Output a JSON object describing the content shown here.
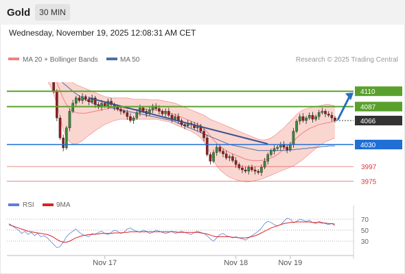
{
  "header": {
    "symbol": "Gold",
    "timeframe": "30 MIN"
  },
  "datetime": "Wednesday, November 19, 2025 12:08:31 AM CET",
  "legend": {
    "ma20_label": "MA 20 + Bollinger Bands",
    "ma50_label": "MA 50",
    "copyright": "Research © 2025 Trading Central",
    "rsi_label": "RSI",
    "rsi_ma_label": "9MA"
  },
  "colors": {
    "ma20": "#f08080",
    "bollinger_fill": "#f8c8c0",
    "ma50": "#4a6fa5",
    "resistance": "#5aa02c",
    "support": "#1f6fd6",
    "lower_levels": "#d93a3a",
    "current_price": "#333333",
    "trendline": "#3a4f8f",
    "rsi": "#5b7fd6",
    "rsi_ma": "#e02020",
    "candle_up": "#3a8a3a",
    "candle_down": "#9a1a1a"
  },
  "chart_data": [
    {
      "type": "candlestick",
      "title": "",
      "x_tick_labels": [
        "Nov 17",
        "Nov 18",
        "Nov 19"
      ],
      "ylim": [
        3955,
        4140
      ],
      "price_levels": [
        {
          "label": "4110",
          "value": 4110,
          "kind": "resistance"
        },
        {
          "label": "4087",
          "value": 4087,
          "kind": "resistance"
        },
        {
          "label": "4066",
          "value": 4066,
          "kind": "current"
        },
        {
          "label": "4030",
          "value": 4030,
          "kind": "support"
        },
        {
          "label": "3997",
          "value": 3997,
          "kind": "level"
        },
        {
          "label": "3975",
          "value": 3975,
          "kind": "level"
        }
      ],
      "close": [
        4195,
        4188,
        4183,
        4178,
        4170,
        4175,
        4168,
        4172,
        4160,
        4165,
        4158,
        4162,
        4150,
        4130,
        4110,
        4070,
        4040,
        4025,
        4055,
        4080,
        4092,
        4100,
        4096,
        4102,
        4098,
        4094,
        4100,
        4090,
        4086,
        4092,
        4088,
        4095,
        4090,
        4086,
        4083,
        4080,
        4078,
        4072,
        4066,
        4070,
        4078,
        4085,
        4080,
        4076,
        4082,
        4088,
        4084,
        4080,
        4076,
        4080,
        4074,
        4068,
        4072,
        4066,
        4060,
        4058,
        4062,
        4060,
        4055,
        4058,
        4050,
        4040,
        4015,
        4005,
        4018,
        4026,
        4020,
        4016,
        4010,
        4012,
        4006,
        4000,
        3995,
        3992,
        3990,
        3996,
        3992,
        3990,
        3988,
        3996,
        4005,
        4015,
        4020,
        4024,
        4026,
        4030,
        4026,
        4022,
        4030,
        4050,
        4065,
        4072,
        4066,
        4070,
        4074,
        4068,
        4072,
        4078,
        4080,
        4076,
        4074,
        4070,
        4066
      ],
      "bollinger_upper": [
        4210,
        4212,
        4213,
        4213,
        4212,
        4210,
        4207,
        4203,
        4198,
        4193,
        4187,
        4181,
        4174,
        4168,
        4161,
        4152,
        4144,
        4137,
        4132,
        4127,
        4123,
        4120,
        4118,
        4116,
        4114,
        4112,
        4110,
        4108,
        4106,
        4104,
        4102,
        4101,
        4100,
        4100,
        4100,
        4100,
        4100,
        4100,
        4099,
        4098,
        4098,
        4098,
        4098,
        4098,
        4097,
        4097,
        4097,
        4097,
        4096,
        4095,
        4094,
        4093,
        4092,
        4090,
        4088,
        4086,
        4084,
        4082,
        4080,
        4078,
        4076,
        4074,
        4071,
        4068,
        4066,
        4064,
        4062,
        4060,
        4058,
        4056,
        4054,
        4052,
        4050,
        4048,
        4046,
        4044,
        4042,
        4040,
        4038,
        4037,
        4037,
        4038,
        4040,
        4043,
        4047,
        4051,
        4055,
        4060,
        4065,
        4070,
        4075,
        4079,
        4082,
        4084,
        4085,
        4086,
        4087,
        4088,
        4089,
        4090,
        4090,
        4089,
        4088
      ],
      "bollinger_lower": [
        4150,
        4148,
        4147,
        4146,
        4145,
        4145,
        4144,
        4143,
        4141,
        4138,
        4134,
        4130,
        4125,
        4118,
        4106,
        4090,
        4070,
        4052,
        4040,
        4034,
        4031,
        4031,
        4033,
        4036,
        4040,
        4044,
        4047,
        4051,
        4054,
        4057,
        4060,
        4062,
        4064,
        4066,
        4067,
        4068,
        4068,
        4068,
        4068,
        4068,
        4068,
        4068,
        4068,
        4068,
        4068,
        4068,
        4068,
        4067,
        4066,
        4065,
        4064,
        4062,
        4060,
        4058,
        4056,
        4054,
        4052,
        4050,
        4047,
        4044,
        4040,
        4034,
        4026,
        4016,
        4006,
        3998,
        3992,
        3988,
        3984,
        3981,
        3979,
        3977,
        3976,
        3975,
        3974,
        3974,
        3975,
        3976,
        3977,
        3978,
        3980,
        3982,
        3984,
        3986,
        3988,
        3990,
        3992,
        3994,
        3996,
        3998,
        4001,
        4004,
        4008,
        4012,
        4016,
        4020,
        4024,
        4028,
        4031,
        4034,
        4036,
        4038,
        4040
      ],
      "ma20": [
        4180,
        4180,
        4180,
        4179,
        4178,
        4177,
        4175,
        4173,
        4170,
        4166,
        4161,
        4156,
        4150,
        4143,
        4134,
        4123,
        4111,
        4099,
        4090,
        4084,
        4080,
        4078,
        4077,
        4077,
        4077,
        4078,
        4079,
        4080,
        4081,
        4082,
        4083,
        4084,
        4085,
        4085,
        4085,
        4085,
        4085,
        4084,
        4084,
        4083,
        4083,
        4083,
        4083,
        4083,
        4082,
        4082,
        4082,
        4081,
        4080,
        4079,
        4078,
        4076,
        4075,
        4073,
        4071,
        4069,
        4067,
        4065,
        4063,
        4061,
        4058,
        4054,
        4049,
        4043,
        4037,
        4032,
        4028,
        4024,
        4021,
        4018,
        4016,
        4014,
        4012,
        4010,
        4008,
        4007,
        4006,
        4006,
        4006,
        4006,
        4007,
        4008,
        4010,
        4012,
        4015,
        4019,
        4023,
        4027,
        4031,
        4035,
        4040,
        4044,
        4048,
        4051,
        4054,
        4056,
        4058,
        4060,
        4061,
        4062,
        4063,
        4064,
        4065
      ],
      "ma50": [
        4186,
        4184,
        4182,
        4180,
        4178,
        4176,
        4173,
        4170,
        4166,
        4162,
        4157,
        4152,
        4147,
        4142,
        4137,
        4132,
        4127,
        4122,
        4118,
        4114,
        4110,
        4106,
        4103,
        4100,
        4097,
        4095,
        4093,
        4091,
        4089,
        4088,
        4087,
        4086,
        4085,
        4084,
        4083,
        4082,
        4081,
        4080,
        4079,
        4078,
        4077,
        4076,
        4075,
        4074,
        4073,
        4072,
        4071,
        4070,
        4069,
        4068,
        4067,
        4066,
        4064,
        4062,
        4060,
        4058,
        4056,
        4054,
        4052,
        4050,
        4048,
        4046,
        4044,
        4042,
        4040,
        4038,
        4036,
        4034,
        4032,
        4030,
        4029,
        4028,
        4027,
        4026,
        4025,
        4024,
        4023,
        4022,
        4021,
        4021,
        4021,
        4021,
        4021,
        4021,
        4021,
        4021,
        4021,
        4021,
        4022,
        4022,
        4023,
        4023,
        4024,
        4024,
        4025,
        4025,
        4026,
        4026,
        4027,
        4027,
        4028,
        4028,
        4028
      ]
    },
    {
      "type": "line",
      "title": "",
      "y_tick_labels": [
        "70",
        "50",
        "30"
      ],
      "ylim": [
        10,
        80
      ],
      "series": [
        {
          "name": "RSI",
          "values": [
            62,
            58,
            54,
            50,
            44,
            48,
            42,
            46,
            40,
            44,
            38,
            40,
            36,
            30,
            24,
            18,
            20,
            28,
            38,
            44,
            48,
            52,
            46,
            42,
            40,
            38,
            44,
            42,
            46,
            48,
            44,
            42,
            46,
            50,
            48,
            44,
            46,
            52,
            54,
            50,
            48,
            46,
            50,
            48,
            44,
            46,
            50,
            48,
            46,
            44,
            46,
            48,
            44,
            46,
            48,
            46,
            44,
            42,
            46,
            48,
            46,
            44,
            40,
            34,
            30,
            36,
            42,
            44,
            40,
            38,
            36,
            38,
            36,
            34,
            32,
            36,
            40,
            44,
            48,
            54,
            62,
            66,
            64,
            60,
            58,
            60,
            66,
            72,
            70,
            64,
            66,
            70,
            68,
            66,
            68,
            64,
            62,
            66,
            64,
            62,
            60,
            62,
            58
          ]
        },
        {
          "name": "9MA",
          "values": [
            60,
            58,
            56,
            54,
            52,
            50,
            48,
            47,
            46,
            45,
            44,
            43,
            42,
            40,
            37,
            33,
            30,
            28,
            28,
            30,
            33,
            36,
            38,
            40,
            41,
            42,
            42,
            43,
            43,
            44,
            44,
            44,
            44,
            45,
            45,
            45,
            46,
            46,
            47,
            47,
            47,
            47,
            47,
            47,
            47,
            47,
            47,
            47,
            47,
            47,
            47,
            47,
            47,
            46,
            46,
            46,
            46,
            46,
            46,
            46,
            45,
            44,
            43,
            41,
            39,
            38,
            38,
            38,
            38,
            38,
            37,
            37,
            36,
            36,
            36,
            37,
            38,
            40,
            42,
            45,
            48,
            51,
            54,
            56,
            58,
            60,
            62,
            63,
            64,
            64,
            65,
            65,
            65,
            65,
            65,
            64,
            64,
            64,
            63,
            63,
            62,
            62,
            61
          ]
        }
      ]
    }
  ]
}
